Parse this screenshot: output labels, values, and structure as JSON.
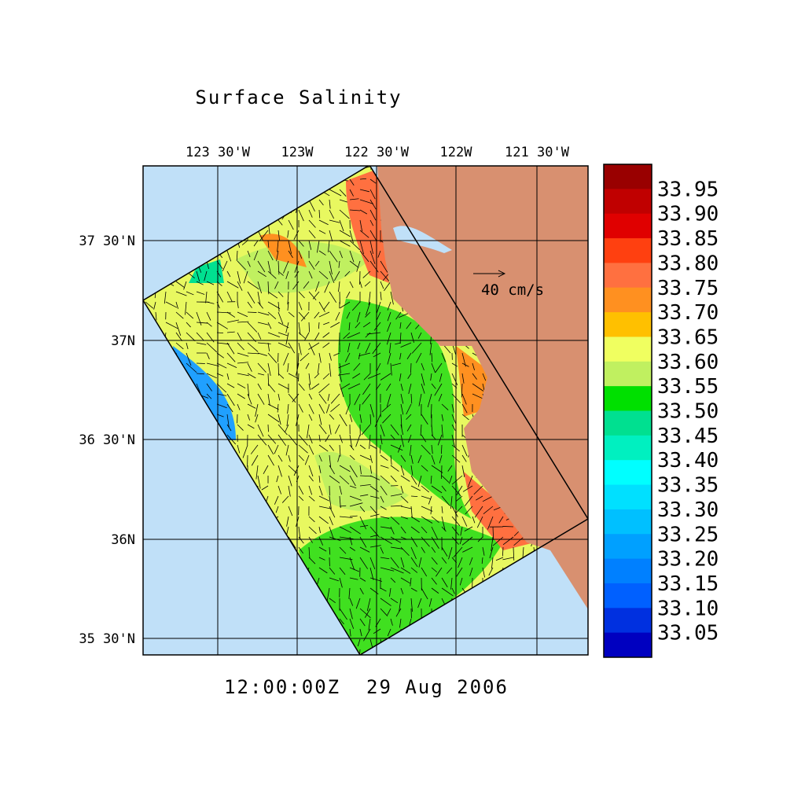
{
  "title": "Surface Salinity",
  "timestamp": "12:00:00Z  29 Aug 2006",
  "vector_scale": "40 cm/s",
  "lon_labels": [
    "123 30'W",
    "123W",
    "122 30'W",
    "122W",
    "121 30'W"
  ],
  "lat_labels": [
    "37 30'N",
    "37N",
    "36 30'N",
    "36N",
    "35 30'N"
  ],
  "colorbar": {
    "labels": [
      "33.95",
      "33.90",
      "33.85",
      "33.80",
      "33.75",
      "33.70",
      "33.65",
      "33.60",
      "33.55",
      "33.50",
      "33.45",
      "33.40",
      "33.35",
      "33.30",
      "33.25",
      "33.20",
      "33.15",
      "33.10",
      "33.05"
    ],
    "colors": [
      "#990000",
      "#c00000",
      "#e00000",
      "#ff4010",
      "#ff7040",
      "#ff9020",
      "#ffc000",
      "#f0ff60",
      "#c0f060",
      "#00e000",
      "#00e090",
      "#00f0c0",
      "#00ffff",
      "#00e0ff",
      "#00c0ff",
      "#00a0ff",
      "#0080ff",
      "#0060ff",
      "#0030e0",
      "#0000c0"
    ]
  }
}
